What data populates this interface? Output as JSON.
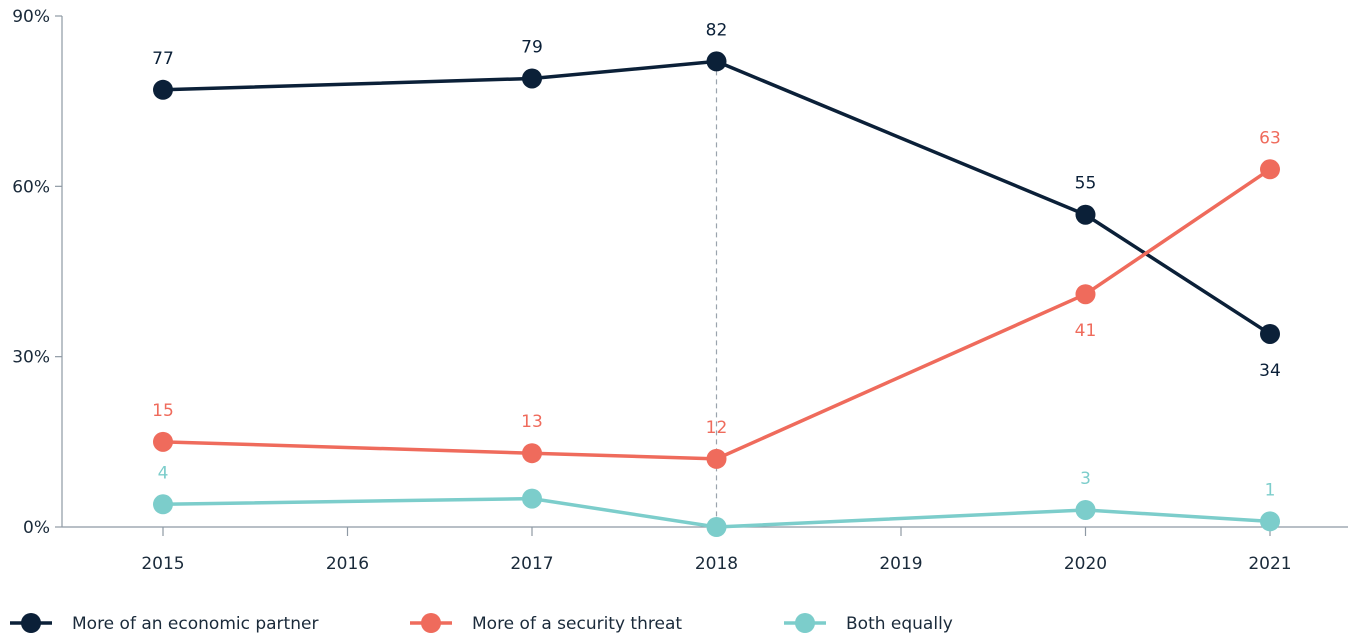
{
  "chart_data": {
    "type": "line",
    "title": "",
    "xlabel": "",
    "ylabel": "",
    "x_ticks": [
      "2015",
      "2016",
      "2017",
      "2018",
      "2019",
      "2020",
      "2021"
    ],
    "xlim": [
      2015,
      2021
    ],
    "ylim": [
      0,
      90
    ],
    "y_ticks": [
      0,
      30,
      60,
      90
    ],
    "y_tick_labels": [
      "0%",
      "30%",
      "60%",
      "90%"
    ],
    "grid": false,
    "legend_position": "bottom",
    "annotation": "dashed vertical marker at 2018",
    "marker_x": 2018,
    "series": [
      {
        "name": "More of an economic partner",
        "color": "#0b2038",
        "points": [
          {
            "x": 2015,
            "y": 77,
            "label": "77"
          },
          {
            "x": 2017,
            "y": 79,
            "label": "79"
          },
          {
            "x": 2018,
            "y": 82,
            "label": "82"
          },
          {
            "x": 2020,
            "y": 55,
            "label": "55"
          },
          {
            "x": 2021,
            "y": 34,
            "label": "34"
          }
        ]
      },
      {
        "name": "More of a security threat",
        "color": "#ef6b5c",
        "points": [
          {
            "x": 2015,
            "y": 15,
            "label": "15"
          },
          {
            "x": 2017,
            "y": 13,
            "label": "13"
          },
          {
            "x": 2018,
            "y": 12,
            "label": "12"
          },
          {
            "x": 2020,
            "y": 41,
            "label": "41"
          },
          {
            "x": 2021,
            "y": 63,
            "label": "63"
          }
        ]
      },
      {
        "name": "Both equally",
        "color": "#7ccdcb",
        "points": [
          {
            "x": 2015,
            "y": 4,
            "label": "4"
          },
          {
            "x": 2017,
            "y": 5,
            "label": ""
          },
          {
            "x": 2018,
            "y": 0,
            "label": ""
          },
          {
            "x": 2020,
            "y": 3,
            "label": "3"
          },
          {
            "x": 2021,
            "y": 1,
            "label": "1"
          }
        ]
      }
    ]
  }
}
